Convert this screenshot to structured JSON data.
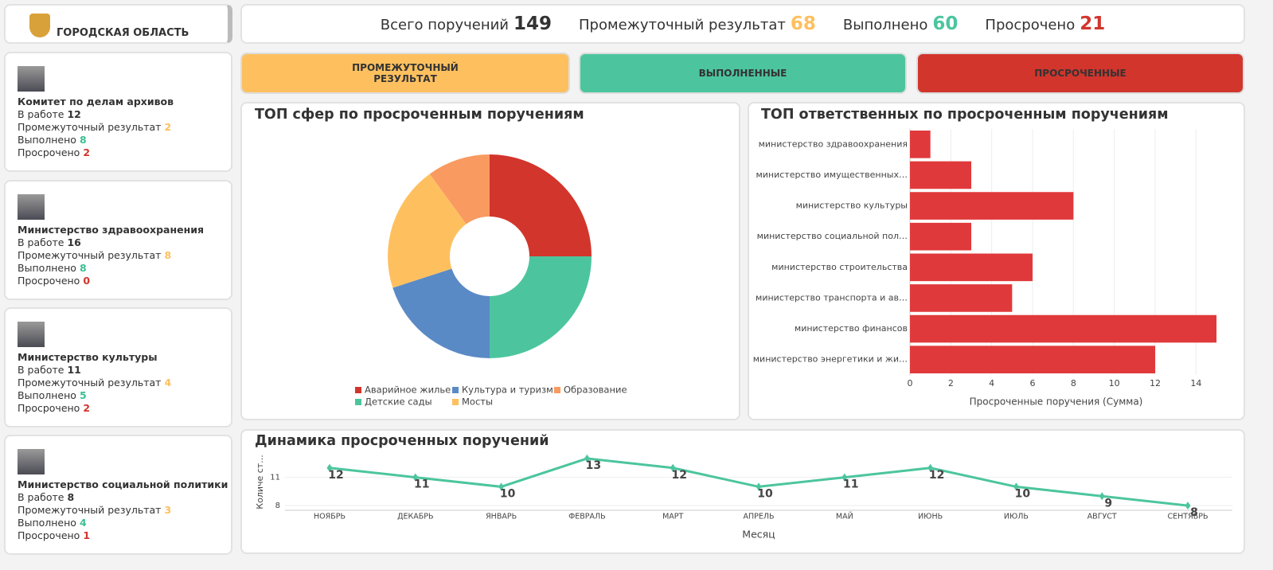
{
  "logo_text": "ГОРОДСКАЯ ОБЛАСТЬ",
  "kpis": [
    {
      "label": "Всего поручений",
      "value": 149
    },
    {
      "label": "Промежуточный результат",
      "value": 68
    },
    {
      "label": "Выполнено",
      "value": 60
    },
    {
      "label": "Просрочено",
      "value": 21
    }
  ],
  "buttons": [
    "ПРОМЕЖУТОЧНЫЙ РЕЗУЛЬТАТ",
    "ВЫПОЛНЕННЫЕ",
    "ПРОСРОЧЕННЫЕ"
  ],
  "cards": [
    {
      "name": "Комитет по делам архивов",
      "rows": [
        {
          "label": "В работе",
          "value": 12
        },
        {
          "label": "Промежуточный результат",
          "value": 2
        },
        {
          "label": "Выполнено",
          "value": 8
        },
        {
          "label": "Просрочено",
          "value": 2
        }
      ]
    },
    {
      "name": "Министерство здравоохранения",
      "rows": [
        {
          "label": "В работе",
          "value": 16
        },
        {
          "label": "Промежуточный результат",
          "value": 8
        },
        {
          "label": "Выполнено",
          "value": 8
        },
        {
          "label": "Просрочено",
          "value": 0
        }
      ]
    },
    {
      "name": "Министерство культуры",
      "rows": [
        {
          "label": "В работе",
          "value": 11
        },
        {
          "label": "Промежуточный результат",
          "value": 4
        },
        {
          "label": "Выполнено",
          "value": 5
        },
        {
          "label": "Просрочено",
          "value": 2
        }
      ]
    },
    {
      "name": "Министерство социальной политики",
      "rows": [
        {
          "label": "В работе",
          "value": 8
        },
        {
          "label": "Промежуточный результат",
          "value": 3
        },
        {
          "label": "Выполнено",
          "value": 4
        },
        {
          "label": "Просрочено",
          "value": 1
        }
      ]
    }
  ],
  "chart_data": [
    {
      "type": "pie",
      "title": "ТОП сфер по просроченным поручениям",
      "categories": [
        "Аварийное жилье",
        "Детские сады",
        "Культура и туризм",
        "Мосты",
        "Образование"
      ],
      "values": [
        5,
        5,
        4,
        4,
        2
      ],
      "colors": [
        "#d2352c",
        "#4cc59e",
        "#5a8ac6",
        "#fec05f",
        "#f99a60"
      ]
    },
    {
      "type": "bar",
      "title": "ТОП ответственных по просроченным поручениям",
      "categories": [
        "министерство здравоохранения",
        "министерство имущественных…",
        "министерство культуры",
        "министерство социальной пол…",
        "министерство строительства",
        "министерство транспорта и ав…",
        "министерство финансов",
        "министерство энергетики и жи…"
      ],
      "values": [
        1,
        3,
        8,
        3,
        6,
        5,
        15,
        12
      ],
      "color": "#e0393b",
      "xlim": [
        0,
        15
      ],
      "xticks": [
        0,
        2,
        4,
        6,
        8,
        10,
        12,
        14
      ],
      "x_label": "Просроченные поручения (Сумма)",
      "grid": true
    },
    {
      "type": "line",
      "title": "Динамика просроченных поручений",
      "categories": [
        "НОЯБРЬ",
        "ДЕКАБРЬ",
        "ЯНВАРЬ",
        "ФЕВРАЛЬ",
        "МАРТ",
        "АПРЕЛЬ",
        "МАЙ",
        "ИЮНЬ",
        "ИЮЛЬ",
        "АВГУСТ",
        "СЕНТЯБРЬ"
      ],
      "values": [
        12,
        11,
        10,
        13,
        12,
        10,
        11,
        12,
        10,
        9,
        8
      ],
      "color": "#4cc59e",
      "ylim": [
        7.5,
        13.5
      ],
      "yticks": [
        8,
        11
      ],
      "x_label": "Месяц",
      "y_label": "Количе ст...",
      "grid": true
    }
  ]
}
